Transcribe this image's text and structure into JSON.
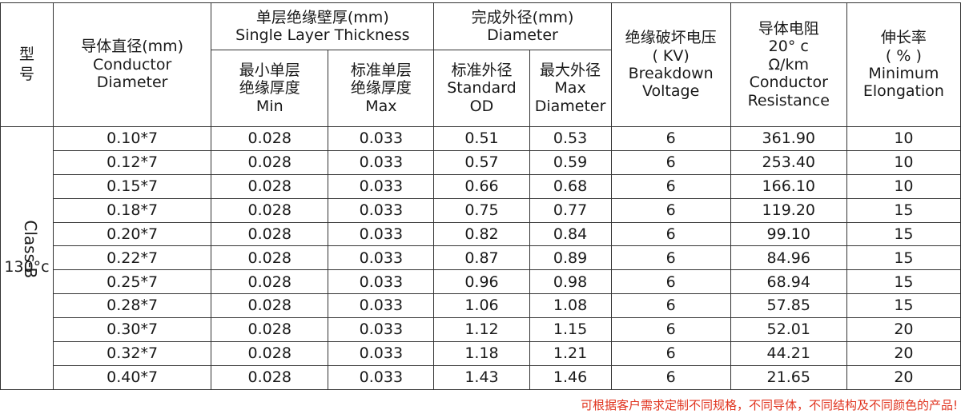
{
  "header": {
    "model": [
      "型",
      "号"
    ],
    "conductor_diameter": [
      "导体直径(mm)",
      "Conductor",
      "Diameter"
    ],
    "thickness_group": [
      "单层绝缘壁厚(mm)",
      "Single Layer Thickness"
    ],
    "thickness_min": [
      "最小单层",
      "绝缘厚度",
      "Min"
    ],
    "thickness_max": [
      "标准单层",
      "绝缘厚度",
      "Max"
    ],
    "diameter_group": [
      "完成外径(mm)",
      "Diameter"
    ],
    "standard_od": [
      "标准外径",
      "Standard",
      "OD"
    ],
    "max_diameter": [
      "最大外径",
      "Max",
      "Diameter"
    ],
    "breakdown": [
      "绝缘破坏电压",
      "( KV)",
      "Breakdown",
      "Voltage"
    ],
    "resistance": [
      "导体电阻",
      "20°  c",
      "Ω/km",
      "Conductor",
      "Resistance"
    ],
    "elongation": [
      "伸长率",
      "( % )",
      "Minimum",
      "Elongation"
    ]
  },
  "model_cell": {
    "class": "Class-B",
    "temperature": "130°c"
  },
  "rows": [
    [
      "0.10*7",
      "0.028",
      "0.033",
      "0.51",
      "0.53",
      "6",
      "361.90",
      "10"
    ],
    [
      "0.12*7",
      "0.028",
      "0.033",
      "0.57",
      "0.59",
      "6",
      "253.40",
      "10"
    ],
    [
      "0.15*7",
      "0.028",
      "0.033",
      "0.66",
      "0.68",
      "6",
      "166.10",
      "10"
    ],
    [
      "0.18*7",
      "0.028",
      "0.033",
      "0.75",
      "0.77",
      "6",
      "119.20",
      "15"
    ],
    [
      "0.20*7",
      "0.028",
      "0.033",
      "0.82",
      "0.84",
      "6",
      "99.10",
      "15"
    ],
    [
      "0.22*7",
      "0.028",
      "0.033",
      "0.87",
      "0.89",
      "6",
      "84.96",
      "15"
    ],
    [
      "0.25*7",
      "0.028",
      "0.033",
      "0.96",
      "0.98",
      "6",
      "68.94",
      "15"
    ],
    [
      "0.28*7",
      "0.028",
      "0.033",
      "1.06",
      "1.08",
      "6",
      "57.85",
      "15"
    ],
    [
      "0.30*7",
      "0.028",
      "0.033",
      "1.12",
      "1.15",
      "6",
      "52.01",
      "20"
    ],
    [
      "0.32*7",
      "0.028",
      "0.033",
      "1.18",
      "1.21",
      "6",
      "44.21",
      "20"
    ],
    [
      "0.40*7",
      "0.028",
      "0.033",
      "1.43",
      "1.46",
      "6",
      "21.65",
      "20"
    ]
  ],
  "footnote": "可根据客户需求定制不同规格，不同导体，不同结构及不同颜色的产品!",
  "colors": {
    "footnote": "#e0341f",
    "border": "#333333",
    "text": "#1a1a1a"
  }
}
